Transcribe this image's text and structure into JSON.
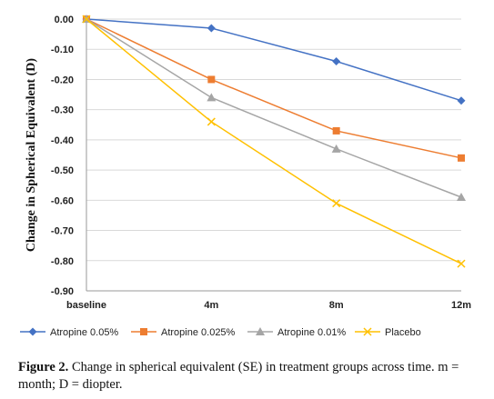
{
  "chart_data": {
    "type": "line",
    "categories": [
      "baseline",
      "4m",
      "8m",
      "12m"
    ],
    "ylabel": "Change in Spherical Equivalent (D)",
    "xlabel": "",
    "ylim": [
      -0.9,
      0.0
    ],
    "y_ticks": [
      "0.00",
      "-0.10",
      "-0.20",
      "-0.30",
      "-0.40",
      "-0.50",
      "-0.60",
      "-0.70",
      "-0.80",
      "-0.90"
    ],
    "grid": "horizontal",
    "legend_position": "bottom",
    "series": [
      {
        "name": "Atropine 0.05%",
        "values": [
          0.0,
          -0.03,
          -0.14,
          -0.27
        ],
        "color": "#4472C4",
        "marker": "diamond"
      },
      {
        "name": "Atropine 0.025%",
        "values": [
          0.0,
          -0.2,
          -0.37,
          -0.46
        ],
        "color": "#ED7D31",
        "marker": "square"
      },
      {
        "name": "Atropine 0.01%",
        "values": [
          0.0,
          -0.26,
          -0.43,
          -0.59
        ],
        "color": "#A5A5A5",
        "marker": "triangle"
      },
      {
        "name": "Placebo",
        "values": [
          0.0,
          -0.34,
          -0.61,
          -0.81
        ],
        "color": "#FFC000",
        "marker": "x"
      }
    ]
  },
  "caption": {
    "label": "Figure 2.",
    "text": " Change in spherical equivalent (SE) in treatment groups across time. m = month; D = diopter."
  }
}
